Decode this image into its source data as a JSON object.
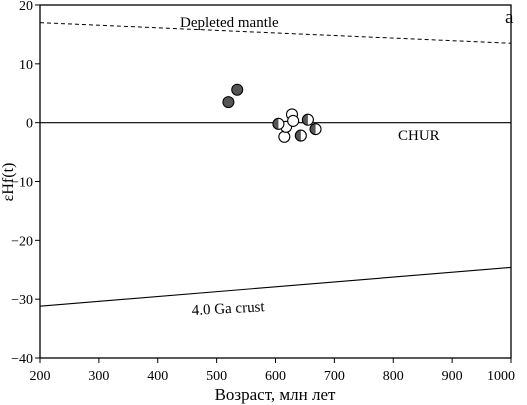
{
  "chart_data": {
    "type": "scatter",
    "panel_label": "a",
    "xlabel": "Возраст, млн лет",
    "ylabel": "εHf(t)",
    "xlim": [
      200,
      1000
    ],
    "ylim": [
      -40,
      20
    ],
    "x_ticks": [
      "200",
      "300",
      "400",
      "500",
      "600",
      "700",
      "800",
      "900",
      "1000"
    ],
    "y_ticks": [
      "20",
      "10",
      "0",
      "−10",
      "−20",
      "−30",
      "−40"
    ],
    "grid": false,
    "reference_lines": [
      {
        "label": "Depleted mantle",
        "style": "dashed",
        "points": [
          [
            200,
            17.0
          ],
          [
            1000,
            13.5
          ]
        ]
      },
      {
        "label": "CHUR",
        "style": "solid",
        "points": [
          [
            200,
            0
          ],
          [
            1000,
            0
          ]
        ]
      },
      {
        "label": "4.0 Ga crust",
        "style": "solid",
        "points": [
          [
            200,
            -31.2
          ],
          [
            1000,
            -24.6
          ]
        ]
      }
    ],
    "series": [
      {
        "marker": "filled",
        "color": "#555555",
        "points": [
          [
            520,
            3.5
          ],
          [
            535,
            5.6
          ]
        ]
      },
      {
        "marker": "open",
        "points": [
          [
            615,
            -2.4
          ],
          [
            618,
            -0.7
          ],
          [
            628,
            1.4
          ],
          [
            630,
            0.3
          ]
        ]
      },
      {
        "marker": "half-filled",
        "points": [
          [
            605,
            -0.2
          ],
          [
            643,
            -2.2
          ],
          [
            655,
            0.5
          ],
          [
            668,
            -1.1
          ]
        ]
      }
    ]
  }
}
